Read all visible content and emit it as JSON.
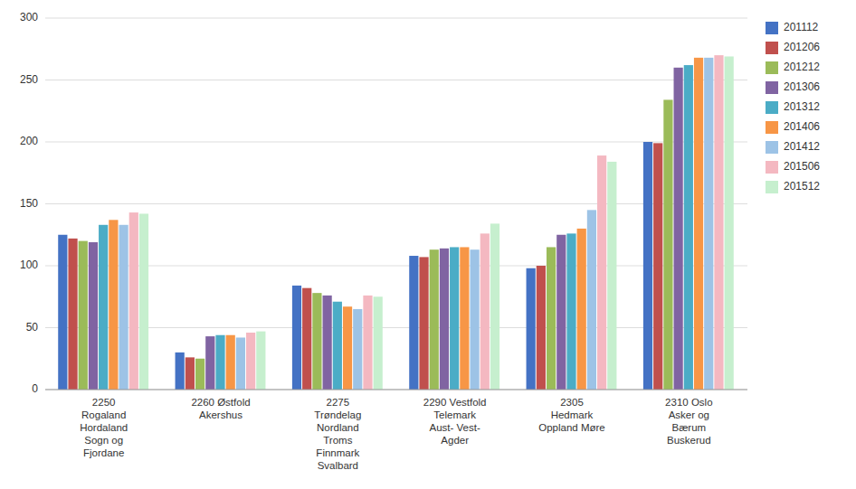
{
  "chart_data": {
    "type": "bar",
    "categories": [
      "2250\nRogaland\nHordaland\nSogn og\nFjordane",
      "2260 Østfold\nAkershus",
      "2275\nTrøndelag\nNordland\nTroms\nFinnmark\nSvalbard",
      "2290 Vestfold\nTelemark\nAust- Vest-\nAgder",
      "2305\nHedmark\nOppland Møre",
      "2310 Oslo\nAsker og\nBærum\nBuskerud"
    ],
    "series": [
      {
        "name": "201112",
        "color": "#4472C4",
        "values": [
          125,
          30,
          84,
          108,
          98,
          200
        ]
      },
      {
        "name": "201206",
        "color": "#C0504D",
        "values": [
          122,
          26,
          82,
          107,
          100,
          199
        ]
      },
      {
        "name": "201212",
        "color": "#9BBB59",
        "values": [
          120,
          25,
          78,
          113,
          115,
          234
        ]
      },
      {
        "name": "201306",
        "color": "#8064A2",
        "values": [
          119,
          43,
          76,
          114,
          125,
          260
        ]
      },
      {
        "name": "201312",
        "color": "#4BACC6",
        "values": [
          133,
          44,
          71,
          115,
          126,
          262
        ]
      },
      {
        "name": "201406",
        "color": "#F79646",
        "values": [
          137,
          44,
          67,
          115,
          130,
          268
        ]
      },
      {
        "name": "201412",
        "color": "#9DC3E6",
        "values": [
          133,
          42,
          65,
          113,
          145,
          268
        ]
      },
      {
        "name": "201506",
        "color": "#F4B8C1",
        "values": [
          143,
          46,
          76,
          126,
          189,
          270
        ]
      },
      {
        "name": "201512",
        "color": "#C6EFCE",
        "values": [
          142,
          47,
          75,
          134,
          184,
          269
        ]
      }
    ],
    "ylim": [
      0,
      300
    ],
    "yticks": [
      0,
      50,
      100,
      150,
      200,
      250,
      300
    ],
    "grid": true,
    "legend": "right"
  }
}
